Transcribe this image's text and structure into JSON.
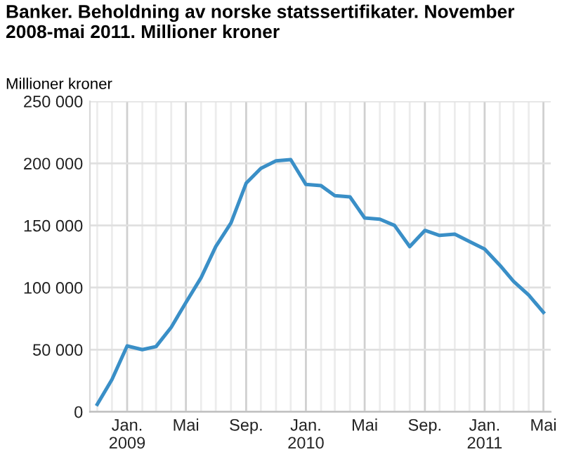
{
  "chart_data": {
    "type": "line",
    "title": "Banker. Beholdning av norske statssertifikater. November 2008-mai 2011. Millioner kroner",
    "ylabel": "Millioner kroner",
    "x": [
      "2008-11",
      "2008-12",
      "2009-01",
      "2009-02",
      "2009-03",
      "2009-04",
      "2009-05",
      "2009-06",
      "2009-07",
      "2009-08",
      "2009-09",
      "2009-10",
      "2009-11",
      "2009-12",
      "2010-01",
      "2010-02",
      "2010-03",
      "2010-04",
      "2010-05",
      "2010-06",
      "2010-07",
      "2010-08",
      "2010-09",
      "2010-10",
      "2010-11",
      "2010-12",
      "2011-01",
      "2011-02",
      "2011-03",
      "2011-04",
      "2011-05"
    ],
    "series": [
      {
        "color": "#3a8fc7",
        "values": [
          6000,
          26000,
          53000,
          50000,
          52500,
          68000,
          88000,
          108000,
          133000,
          152000,
          184000,
          196000,
          202000,
          203000,
          183000,
          182000,
          174000,
          173000,
          156000,
          155000,
          150000,
          133000,
          146000,
          142000,
          143000,
          137000,
          131000,
          118000,
          105000,
          94000,
          80000
        ]
      }
    ],
    "xlim": [
      "2008-10-17",
      "2011-05-16"
    ],
    "xticks": [
      {
        "value": "2008-11",
        "label": null
      },
      {
        "value": "2008-12",
        "label": null
      },
      {
        "value": "2009-01",
        "label": "Jan.\n2009"
      },
      {
        "value": "2009-02",
        "label": null
      },
      {
        "value": "2009-03",
        "label": null
      },
      {
        "value": "2009-04",
        "label": null
      },
      {
        "value": "2009-05",
        "label": "Mai"
      },
      {
        "value": "2009-06",
        "label": null
      },
      {
        "value": "2009-07",
        "label": null
      },
      {
        "value": "2009-08",
        "label": null
      },
      {
        "value": "2009-09",
        "label": "Sep."
      },
      {
        "value": "2009-10",
        "label": null
      },
      {
        "value": "2009-11",
        "label": null
      },
      {
        "value": "2009-12",
        "label": null
      },
      {
        "value": "2010-01",
        "label": "Jan.\n2010"
      },
      {
        "value": "2010-02",
        "label": null
      },
      {
        "value": "2010-03",
        "label": null
      },
      {
        "value": "2010-04",
        "label": null
      },
      {
        "value": "2010-05",
        "label": "Mai"
      },
      {
        "value": "2010-06",
        "label": null
      },
      {
        "value": "2010-07",
        "label": null
      },
      {
        "value": "2010-08",
        "label": null
      },
      {
        "value": "2010-09",
        "label": "Sep."
      },
      {
        "value": "2010-10",
        "label": null
      },
      {
        "value": "2010-11",
        "label": null
      },
      {
        "value": "2010-12",
        "label": null
      },
      {
        "value": "2011-01",
        "label": "Jan.\n2011"
      },
      {
        "value": "2011-02",
        "label": null
      },
      {
        "value": "2011-03",
        "label": null
      },
      {
        "value": "2011-04",
        "label": null
      },
      {
        "value": "2011-05",
        "label": "Mai"
      }
    ],
    "ylim": [
      0,
      250000
    ],
    "yticks": [
      {
        "value": 0,
        "label": "0"
      },
      {
        "value": 50000,
        "label": "50 000"
      },
      {
        "value": 100000,
        "label": "100 000"
      },
      {
        "value": 150000,
        "label": "150 000"
      },
      {
        "value": 200000,
        "label": "200 000"
      },
      {
        "value": 250000,
        "label": "250 000"
      }
    ],
    "grid": true,
    "line_style": "solid"
  }
}
